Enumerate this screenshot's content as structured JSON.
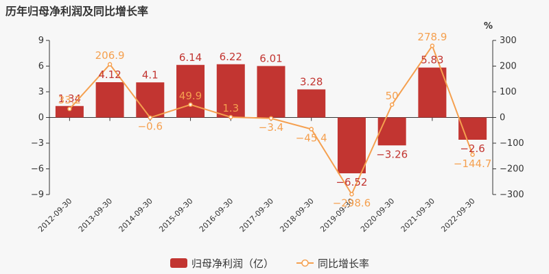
{
  "chart_data": {
    "type": "bar",
    "title": "历年归母净利润及同比增长率",
    "categories": [
      "2012-09-30",
      "2013-09-30",
      "2014-09-30",
      "2015-09-30",
      "2016-09-30",
      "2017-09-30",
      "2018-09-30",
      "2019-09-30",
      "2020-09-30",
      "2021-09-30",
      "2022-09-30"
    ],
    "series": [
      {
        "name": "归母净利润（亿）",
        "type": "bar",
        "axis": "left",
        "color": "#c23531",
        "values": [
          1.34,
          4.12,
          4.1,
          6.14,
          6.22,
          6.01,
          3.28,
          -6.52,
          -3.26,
          5.83,
          -2.6
        ],
        "labels": [
          "1.34",
          "4.12",
          "4.1",
          "6.14",
          "6.22",
          "6.01",
          "3.28",
          "−6.52",
          "−3.26",
          "5.83",
          "−2.6"
        ]
      },
      {
        "name": "同比增长率",
        "type": "line",
        "axis": "right",
        "color": "#f5a04f",
        "values": [
          33.2,
          206.9,
          -0.6,
          49.9,
          1.3,
          -3.4,
          -45.4,
          -298.6,
          50,
          278.9,
          -144.7
        ],
        "labels": [
          "33.2",
          "206.9",
          "−0.6",
          "49.9",
          "1.3",
          "−3.4",
          "−45.4",
          "−298.6",
          "50",
          "278.9",
          "−144.7"
        ]
      }
    ],
    "y_left": {
      "min": -9,
      "max": 9,
      "ticks": [
        9,
        6,
        3,
        0,
        -3,
        -6,
        -9
      ],
      "tick_labels": [
        "9",
        "6",
        "3",
        "0",
        "−3",
        "−6",
        "−9"
      ]
    },
    "y_right": {
      "min": -300,
      "max": 300,
      "ticks": [
        300,
        200,
        100,
        0,
        -100,
        -200,
        -300
      ],
      "tick_labels": [
        "300",
        "200",
        "100",
        "0",
        "−100",
        "−200",
        "−300"
      ],
      "unit": "%"
    },
    "grid": false,
    "legend_position": "bottom"
  }
}
